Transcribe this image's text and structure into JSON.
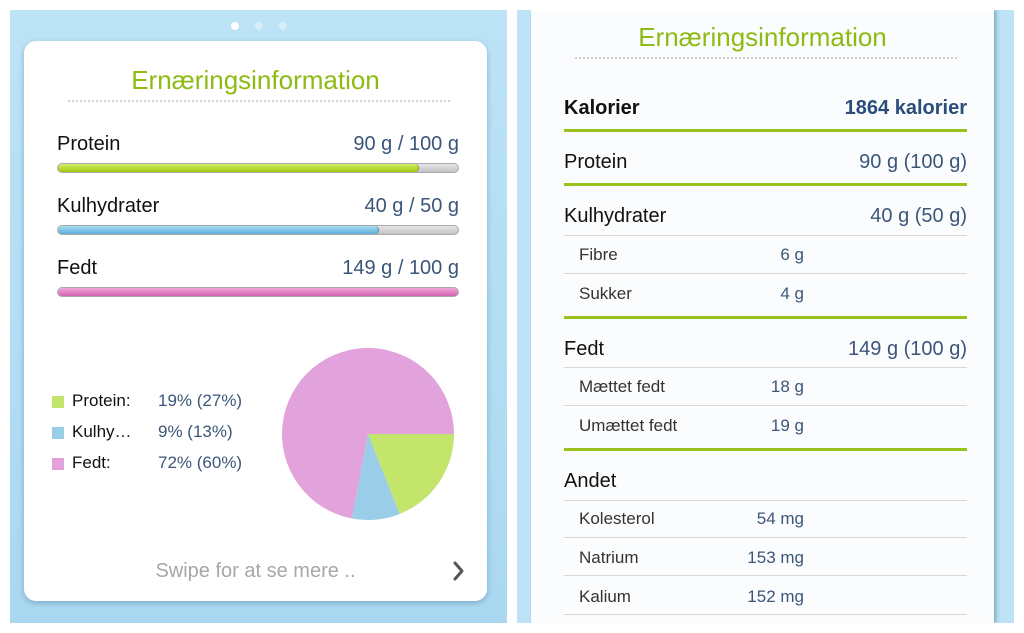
{
  "overview": {
    "title": "Ernæringsinformation",
    "nutrients": [
      {
        "name": "Protein",
        "value": "90 g / 100 g",
        "progress": 0.9
      },
      {
        "name": "Kulhydrater",
        "value": "40 g / 50 g",
        "progress": 0.8
      },
      {
        "name": "Fedt",
        "value": "149 g / 100 g",
        "progress": 1.0
      }
    ],
    "legend": [
      {
        "label": "Protein:",
        "value": "19% (27%)",
        "color": "#c4e56b"
      },
      {
        "label": "Kulhy…",
        "value": "9% (13%)",
        "color": "#9acde8"
      },
      {
        "label": "Fedt:",
        "value": "72% (60%)",
        "color": "#e2a3dc"
      }
    ],
    "swipe_hint": "Swipe for at se mere ..",
    "chevron_icon": "chevron-right-icon"
  },
  "chart_data": {
    "type": "pie",
    "categories": [
      "Protein",
      "Kulhy…",
      "Fedt"
    ],
    "values": [
      19,
      9,
      72
    ],
    "colors": [
      "#c4e56b",
      "#9acde8",
      "#e2a3dc"
    ]
  },
  "detail": {
    "title": "Ernæringsinformation",
    "calories": {
      "label": "Kalorier",
      "value": "1864 kalorier"
    },
    "protein": {
      "label": "Protein",
      "value": "90 g (100 g)"
    },
    "carbs": {
      "label": "Kulhydrater",
      "value": "40 g (50 g)",
      "sub": [
        {
          "label": "Fibre",
          "value": "6 g"
        },
        {
          "label": "Sukker",
          "value": "4 g"
        }
      ]
    },
    "fat": {
      "label": "Fedt",
      "value": "149 g (100 g)",
      "sub": [
        {
          "label": "Mættet fedt",
          "value": "18 g"
        },
        {
          "label": "Umættet fedt",
          "value": "19 g"
        }
      ]
    },
    "other": {
      "label": "Andet",
      "sub": [
        {
          "label": "Kolesterol",
          "value": "54 mg"
        },
        {
          "label": "Natrium",
          "value": "153 mg"
        },
        {
          "label": "Kalium",
          "value": "152 mg"
        }
      ]
    }
  }
}
